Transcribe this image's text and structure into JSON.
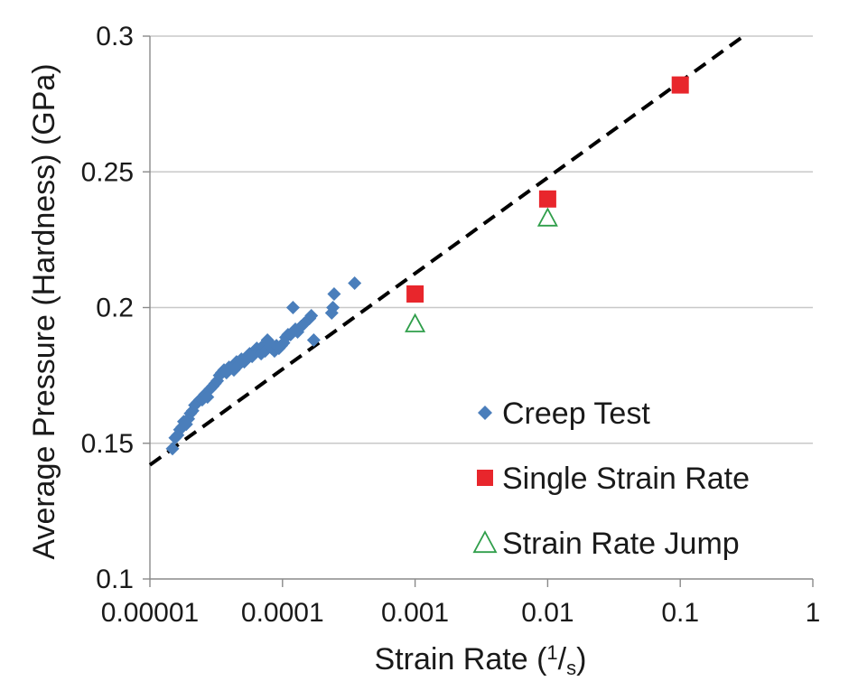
{
  "chart_data": {
    "type": "scatter",
    "x_scale": "log",
    "grid": "horizontal",
    "legend_position": "bottom-right",
    "xlabel": "Strain Rate (",
    "xlabel_unit_num": "1",
    "xlabel_unit_sep": "/",
    "xlabel_unit_den": "s",
    "xlabel_close": ")",
    "ylabel": "Average Pressure (Hardness) (GPa)",
    "xlim": [
      1e-05,
      1
    ],
    "ylim": [
      0.1,
      0.3
    ],
    "x_ticks": [
      {
        "value": 1e-05,
        "label": "0.00001"
      },
      {
        "value": 0.0001,
        "label": "0.0001"
      },
      {
        "value": 0.001,
        "label": "0.001"
      },
      {
        "value": 0.01,
        "label": "0.01"
      },
      {
        "value": 0.1,
        "label": "0.1"
      },
      {
        "value": 1,
        "label": "1"
      }
    ],
    "y_ticks": [
      {
        "value": 0.1,
        "label": "0.1"
      },
      {
        "value": 0.15,
        "label": "0.15"
      },
      {
        "value": 0.2,
        "label": "0.2"
      },
      {
        "value": 0.25,
        "label": "0.25"
      },
      {
        "value": 0.3,
        "label": "0.3"
      }
    ],
    "series": [
      {
        "name": "Creep Test",
        "marker": "diamond",
        "color": "#4a7ebb",
        "points": [
          [
            1.48e-05,
            0.148
          ],
          [
            1.55e-05,
            0.152
          ],
          [
            1.62e-05,
            0.153
          ],
          [
            1.68e-05,
            0.155
          ],
          [
            1.75e-05,
            0.156
          ],
          [
            1.8e-05,
            0.158
          ],
          [
            1.88e-05,
            0.157
          ],
          [
            1.95e-05,
            0.159
          ],
          [
            2.02e-05,
            0.161
          ],
          [
            2.1e-05,
            0.162
          ],
          [
            2.18e-05,
            0.164
          ],
          [
            2.28e-05,
            0.165
          ],
          [
            2.38e-05,
            0.166
          ],
          [
            2.48e-05,
            0.166
          ],
          [
            2.6e-05,
            0.168
          ],
          [
            2.72e-05,
            0.167
          ],
          [
            2.85e-05,
            0.17
          ],
          [
            2.98e-05,
            0.171
          ],
          [
            3.1e-05,
            0.172
          ],
          [
            3.22e-05,
            0.173
          ],
          [
            3.35e-05,
            0.175
          ],
          [
            3.48e-05,
            0.176
          ],
          [
            3.62e-05,
            0.177
          ],
          [
            3.78e-05,
            0.176
          ],
          [
            3.95e-05,
            0.178
          ],
          [
            4.12e-05,
            0.178
          ],
          [
            4.3e-05,
            0.177
          ],
          [
            4.5e-05,
            0.18
          ],
          [
            4.7e-05,
            0.179
          ],
          [
            4.9e-05,
            0.181
          ],
          [
            5.15e-05,
            0.18
          ],
          [
            5.4e-05,
            0.182
          ],
          [
            5.65e-05,
            0.183
          ],
          [
            5.9e-05,
            0.182
          ],
          [
            6.15e-05,
            0.184
          ],
          [
            6.4e-05,
            0.185
          ],
          [
            6.65e-05,
            0.184
          ],
          [
            6.9e-05,
            0.183
          ],
          [
            7.15e-05,
            0.186
          ],
          [
            7.4e-05,
            0.184
          ],
          [
            7.7e-05,
            0.188
          ],
          [
            8e-05,
            0.187
          ],
          [
            8.3e-05,
            0.185
          ],
          [
            8.7e-05,
            0.184
          ],
          [
            9e-05,
            0.186
          ],
          [
            9.4e-05,
            0.185
          ],
          [
            9.8e-05,
            0.186
          ],
          [
            0.000102,
            0.187
          ],
          [
            0.000106,
            0.189
          ],
          [
            0.00011,
            0.19
          ],
          [
            0.000115,
            0.19
          ],
          [
            0.00012,
            0.2
          ],
          [
            0.000125,
            0.192
          ],
          [
            0.00013,
            0.191
          ],
          [
            0.000138,
            0.193
          ],
          [
            0.000145,
            0.194
          ],
          [
            0.00016,
            0.196
          ],
          [
            0.000165,
            0.197
          ],
          [
            0.000172,
            0.188
          ],
          [
            0.000235,
            0.198
          ],
          [
            0.00024,
            0.2
          ],
          [
            0.000245,
            0.205
          ],
          [
            0.00035,
            0.209
          ]
        ]
      },
      {
        "name": "Single Strain Rate",
        "marker": "square",
        "color": "#e8262c",
        "points": [
          [
            0.001,
            0.205
          ],
          [
            0.01,
            0.24
          ],
          [
            0.1,
            0.282
          ]
        ]
      },
      {
        "name": "Strain Rate Jump",
        "marker": "triangle-open",
        "color": "#2f9e4a",
        "points": [
          [
            0.001,
            0.194
          ],
          [
            0.01,
            0.233
          ]
        ]
      }
    ],
    "fit_line": {
      "style": "dashed",
      "color": "#000000",
      "x": [
        1e-05,
        0.3
      ],
      "y": [
        0.142,
        0.3
      ]
    }
  }
}
